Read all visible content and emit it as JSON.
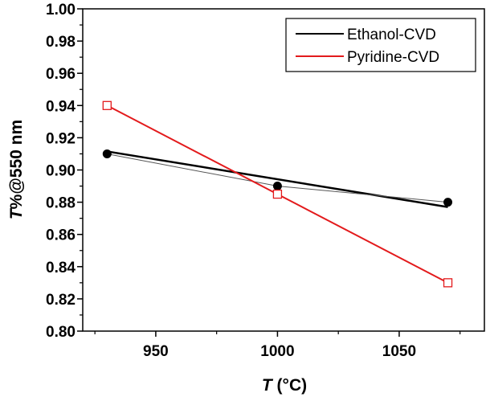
{
  "chart_data": {
    "type": "line",
    "x_axis": {
      "label_italic": "T",
      "label_rest": " (°C)",
      "range": [
        920,
        1085
      ],
      "ticks": [
        950,
        1000,
        1050
      ],
      "tick_labels": [
        "950",
        "1000",
        "1050"
      ],
      "minor_step": 25
    },
    "y_axis": {
      "label_italic": "T",
      "label_rest": "%@550 nm",
      "range": [
        0.8,
        1.0
      ],
      "ticks": [
        0.8,
        0.82,
        0.84,
        0.86,
        0.88,
        0.9,
        0.92,
        0.94,
        0.96,
        0.98,
        1.0
      ],
      "tick_labels": [
        "0.80",
        "0.82",
        "0.84",
        "0.86",
        "0.88",
        "0.90",
        "0.92",
        "0.94",
        "0.96",
        "0.98",
        "1.00"
      ],
      "minor_step": 0.01
    },
    "series": [
      {
        "name": "Ethanol-CVD",
        "color": "#000000",
        "marker": "filled-circle",
        "x": [
          930,
          1000,
          1070
        ],
        "y": [
          0.91,
          0.89,
          0.88
        ],
        "fit_line": {
          "x": [
            930,
            1070
          ],
          "y": [
            0.9115,
            0.877
          ]
        }
      },
      {
        "name": "Pyridine-CVD",
        "color": "#e31a1c",
        "marker": "open-square",
        "x": [
          930,
          1000,
          1070
        ],
        "y": [
          0.94,
          0.885,
          0.83
        ]
      }
    ],
    "legend_position": "top-right",
    "grid": false
  }
}
